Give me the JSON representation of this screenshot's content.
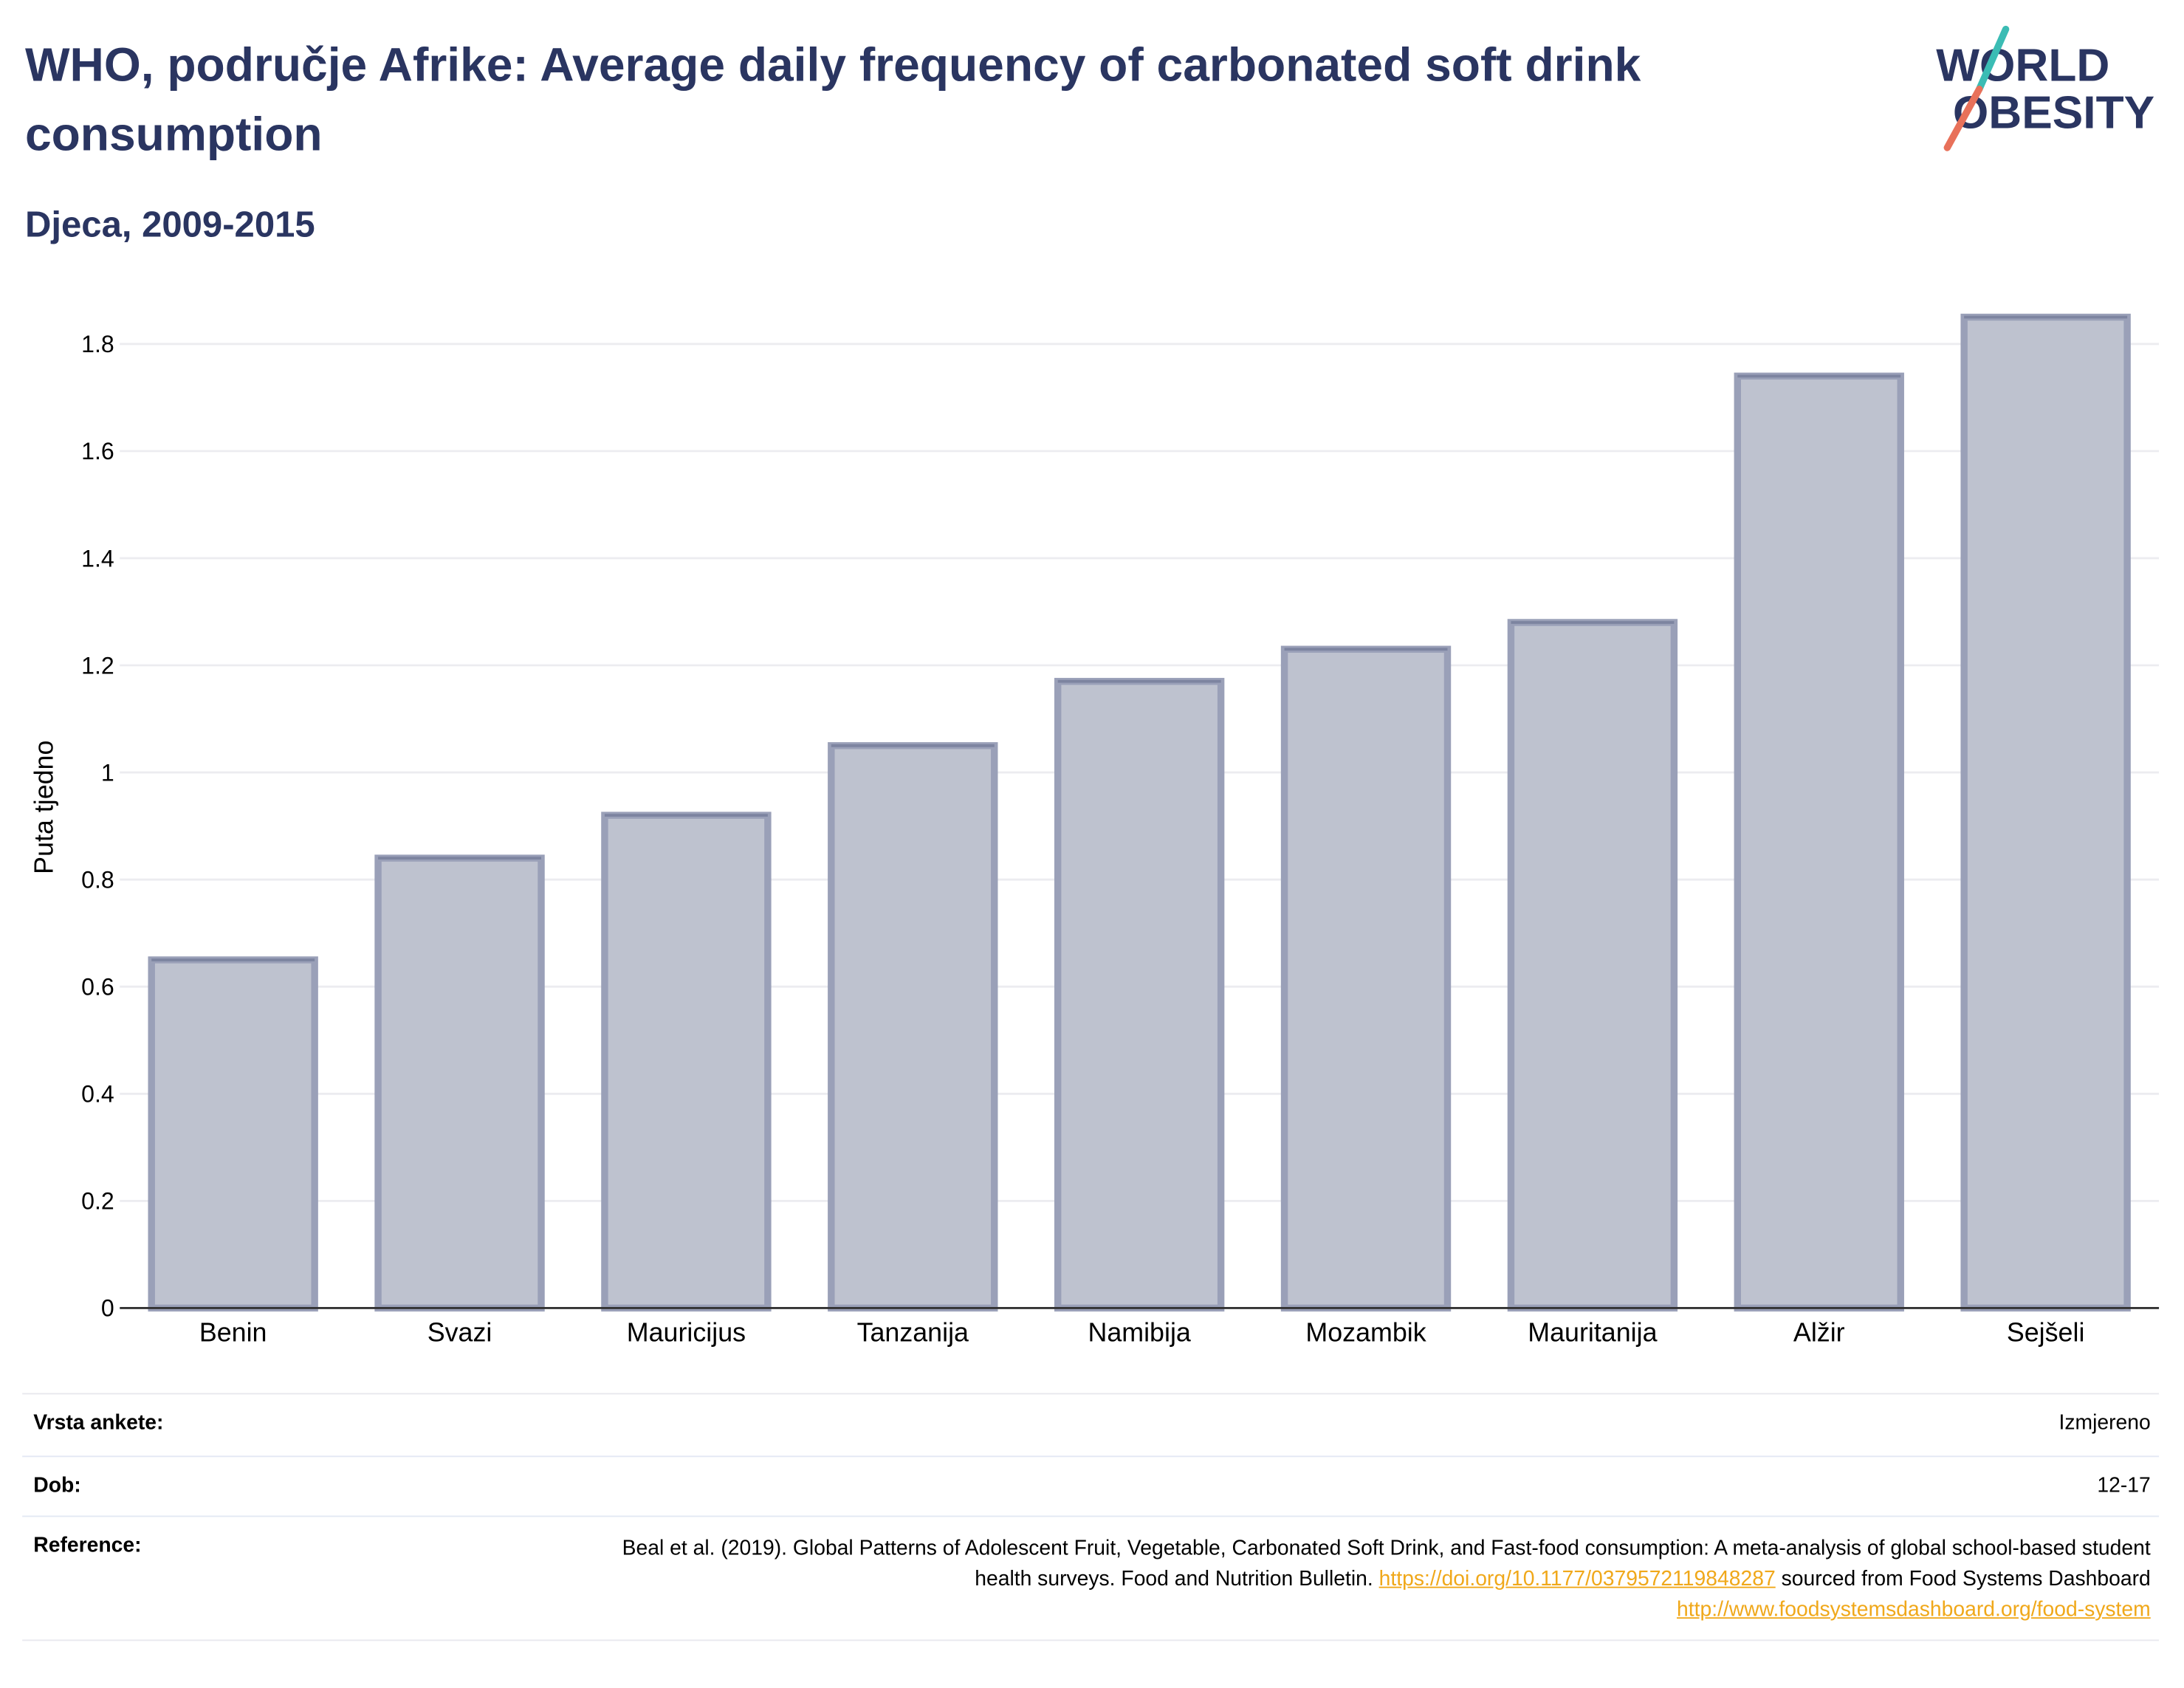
{
  "header": {
    "title": "WHO, područje Afrike: Average daily frequency of carbonated soft drink consumption",
    "subtitle": "Djeca, 2009-2015"
  },
  "logo": {
    "line1": "WORLD",
    "line2": "OBESITY",
    "colors": {
      "text": "#2a3561",
      "slash_top": "#3bbcb4",
      "slash_bottom": "#e8715a"
    }
  },
  "chart_data": {
    "type": "bar",
    "categories": [
      "Benin",
      "Svazi",
      "Mauricijus",
      "Tanzanija",
      "Namibija",
      "Mozambik",
      "Mauritanija",
      "Alžir",
      "Sejšeli"
    ],
    "values": [
      0.65,
      0.84,
      0.92,
      1.05,
      1.17,
      1.23,
      1.28,
      1.74,
      1.85
    ],
    "ylabel": "Puta tjedno",
    "xlabel": "",
    "ylim": [
      0,
      1.87
    ],
    "yticks": [
      0,
      0.2,
      0.4,
      0.6,
      0.8,
      1,
      1.2,
      1.4,
      1.6,
      1.8
    ],
    "ytick_labels": [
      "0",
      "0.2",
      "0.4",
      "0.6",
      "0.8",
      "1",
      "1.2",
      "1.4",
      "1.6",
      "1.8"
    ],
    "grid": true,
    "legend": "none",
    "colors": {
      "bar_fill": "#bec2cf",
      "bar_stroke": "#9aa0b8",
      "bar_stroke_inner": "#7d84a0",
      "grid": "#ececf0",
      "axis": "#333333"
    }
  },
  "info": {
    "survey_type_label": "Vrsta ankete:",
    "survey_type_value": "Izmjereno",
    "age_label": "Dob:",
    "age_value": "12-17",
    "reference_label": "Reference:",
    "reference_text_1": "Beal et al. (2019). Global Patterns of Adolescent Fruit, Vegetable, Carbonated Soft Drink, and Fast-food consumption: A meta-analysis of global school-based student health surveys. Food and Nutrition Bulletin.",
    "reference_link_1": "https://doi.org/10.1177/0379572119848287",
    "reference_text_2": "sourced from Food Systems Dashboard",
    "reference_link_2": "http://www.foodsystemsdashboard.org/food-system"
  }
}
